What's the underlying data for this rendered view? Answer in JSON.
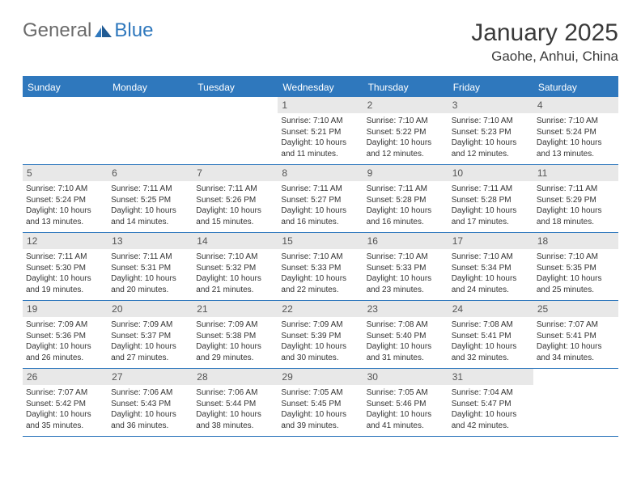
{
  "brand": {
    "general": "General",
    "blue": "Blue"
  },
  "title": "January 2025",
  "location": "Gaohe, Anhui, China",
  "colors": {
    "accent": "#2f78bd",
    "daynum_bg": "#e8e8e8",
    "text": "#333333",
    "header_text": "#3a3a3a",
    "page_bg": "#ffffff"
  },
  "weekdays": [
    "Sunday",
    "Monday",
    "Tuesday",
    "Wednesday",
    "Thursday",
    "Friday",
    "Saturday"
  ],
  "weeks": [
    [
      null,
      null,
      null,
      {
        "n": "1",
        "sr": "Sunrise: 7:10 AM",
        "ss": "Sunset: 5:21 PM",
        "d1": "Daylight: 10 hours",
        "d2": "and 11 minutes."
      },
      {
        "n": "2",
        "sr": "Sunrise: 7:10 AM",
        "ss": "Sunset: 5:22 PM",
        "d1": "Daylight: 10 hours",
        "d2": "and 12 minutes."
      },
      {
        "n": "3",
        "sr": "Sunrise: 7:10 AM",
        "ss": "Sunset: 5:23 PM",
        "d1": "Daylight: 10 hours",
        "d2": "and 12 minutes."
      },
      {
        "n": "4",
        "sr": "Sunrise: 7:10 AM",
        "ss": "Sunset: 5:24 PM",
        "d1": "Daylight: 10 hours",
        "d2": "and 13 minutes."
      }
    ],
    [
      {
        "n": "5",
        "sr": "Sunrise: 7:10 AM",
        "ss": "Sunset: 5:24 PM",
        "d1": "Daylight: 10 hours",
        "d2": "and 13 minutes."
      },
      {
        "n": "6",
        "sr": "Sunrise: 7:11 AM",
        "ss": "Sunset: 5:25 PM",
        "d1": "Daylight: 10 hours",
        "d2": "and 14 minutes."
      },
      {
        "n": "7",
        "sr": "Sunrise: 7:11 AM",
        "ss": "Sunset: 5:26 PM",
        "d1": "Daylight: 10 hours",
        "d2": "and 15 minutes."
      },
      {
        "n": "8",
        "sr": "Sunrise: 7:11 AM",
        "ss": "Sunset: 5:27 PM",
        "d1": "Daylight: 10 hours",
        "d2": "and 16 minutes."
      },
      {
        "n": "9",
        "sr": "Sunrise: 7:11 AM",
        "ss": "Sunset: 5:28 PM",
        "d1": "Daylight: 10 hours",
        "d2": "and 16 minutes."
      },
      {
        "n": "10",
        "sr": "Sunrise: 7:11 AM",
        "ss": "Sunset: 5:28 PM",
        "d1": "Daylight: 10 hours",
        "d2": "and 17 minutes."
      },
      {
        "n": "11",
        "sr": "Sunrise: 7:11 AM",
        "ss": "Sunset: 5:29 PM",
        "d1": "Daylight: 10 hours",
        "d2": "and 18 minutes."
      }
    ],
    [
      {
        "n": "12",
        "sr": "Sunrise: 7:11 AM",
        "ss": "Sunset: 5:30 PM",
        "d1": "Daylight: 10 hours",
        "d2": "and 19 minutes."
      },
      {
        "n": "13",
        "sr": "Sunrise: 7:11 AM",
        "ss": "Sunset: 5:31 PM",
        "d1": "Daylight: 10 hours",
        "d2": "and 20 minutes."
      },
      {
        "n": "14",
        "sr": "Sunrise: 7:10 AM",
        "ss": "Sunset: 5:32 PM",
        "d1": "Daylight: 10 hours",
        "d2": "and 21 minutes."
      },
      {
        "n": "15",
        "sr": "Sunrise: 7:10 AM",
        "ss": "Sunset: 5:33 PM",
        "d1": "Daylight: 10 hours",
        "d2": "and 22 minutes."
      },
      {
        "n": "16",
        "sr": "Sunrise: 7:10 AM",
        "ss": "Sunset: 5:33 PM",
        "d1": "Daylight: 10 hours",
        "d2": "and 23 minutes."
      },
      {
        "n": "17",
        "sr": "Sunrise: 7:10 AM",
        "ss": "Sunset: 5:34 PM",
        "d1": "Daylight: 10 hours",
        "d2": "and 24 minutes."
      },
      {
        "n": "18",
        "sr": "Sunrise: 7:10 AM",
        "ss": "Sunset: 5:35 PM",
        "d1": "Daylight: 10 hours",
        "d2": "and 25 minutes."
      }
    ],
    [
      {
        "n": "19",
        "sr": "Sunrise: 7:09 AM",
        "ss": "Sunset: 5:36 PM",
        "d1": "Daylight: 10 hours",
        "d2": "and 26 minutes."
      },
      {
        "n": "20",
        "sr": "Sunrise: 7:09 AM",
        "ss": "Sunset: 5:37 PM",
        "d1": "Daylight: 10 hours",
        "d2": "and 27 minutes."
      },
      {
        "n": "21",
        "sr": "Sunrise: 7:09 AM",
        "ss": "Sunset: 5:38 PM",
        "d1": "Daylight: 10 hours",
        "d2": "and 29 minutes."
      },
      {
        "n": "22",
        "sr": "Sunrise: 7:09 AM",
        "ss": "Sunset: 5:39 PM",
        "d1": "Daylight: 10 hours",
        "d2": "and 30 minutes."
      },
      {
        "n": "23",
        "sr": "Sunrise: 7:08 AM",
        "ss": "Sunset: 5:40 PM",
        "d1": "Daylight: 10 hours",
        "d2": "and 31 minutes."
      },
      {
        "n": "24",
        "sr": "Sunrise: 7:08 AM",
        "ss": "Sunset: 5:41 PM",
        "d1": "Daylight: 10 hours",
        "d2": "and 32 minutes."
      },
      {
        "n": "25",
        "sr": "Sunrise: 7:07 AM",
        "ss": "Sunset: 5:41 PM",
        "d1": "Daylight: 10 hours",
        "d2": "and 34 minutes."
      }
    ],
    [
      {
        "n": "26",
        "sr": "Sunrise: 7:07 AM",
        "ss": "Sunset: 5:42 PM",
        "d1": "Daylight: 10 hours",
        "d2": "and 35 minutes."
      },
      {
        "n": "27",
        "sr": "Sunrise: 7:06 AM",
        "ss": "Sunset: 5:43 PM",
        "d1": "Daylight: 10 hours",
        "d2": "and 36 minutes."
      },
      {
        "n": "28",
        "sr": "Sunrise: 7:06 AM",
        "ss": "Sunset: 5:44 PM",
        "d1": "Daylight: 10 hours",
        "d2": "and 38 minutes."
      },
      {
        "n": "29",
        "sr": "Sunrise: 7:05 AM",
        "ss": "Sunset: 5:45 PM",
        "d1": "Daylight: 10 hours",
        "d2": "and 39 minutes."
      },
      {
        "n": "30",
        "sr": "Sunrise: 7:05 AM",
        "ss": "Sunset: 5:46 PM",
        "d1": "Daylight: 10 hours",
        "d2": "and 41 minutes."
      },
      {
        "n": "31",
        "sr": "Sunrise: 7:04 AM",
        "ss": "Sunset: 5:47 PM",
        "d1": "Daylight: 10 hours",
        "d2": "and 42 minutes."
      },
      null
    ]
  ]
}
